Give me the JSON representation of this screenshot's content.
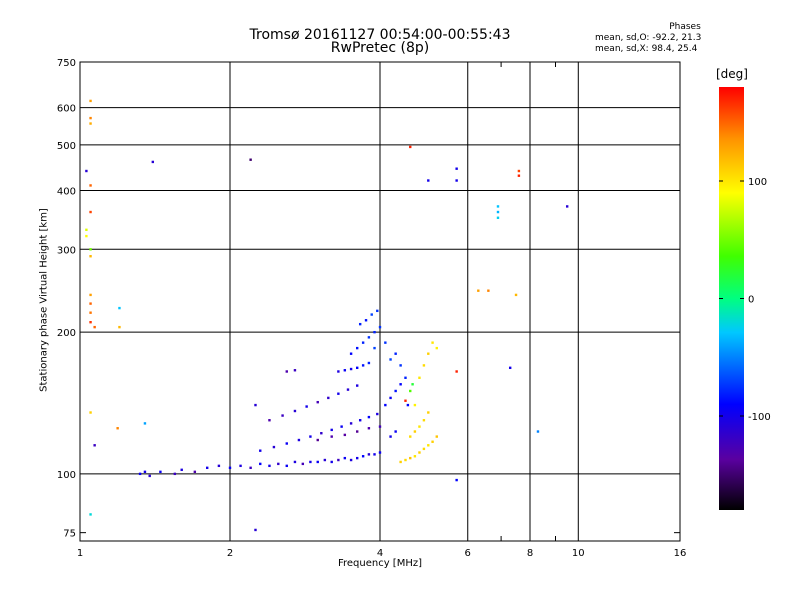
{
  "title_line1": "Tromsø 20161127 00:54:00-00:55:43",
  "title_line2": "RwPretec (8p)",
  "phases": {
    "header": "Phases",
    "line_o": "mean, sd,O: -92.2, 21.3",
    "line_x": "mean, sd,X:  98.4, 25.4"
  },
  "chart_data": {
    "type": "scatter",
    "xlabel": "Frequency [MHz]",
    "ylabel": "Stationary phase Virtual Height [km]",
    "x_scale": "log",
    "y_scale": "log",
    "xlim": [
      1,
      16
    ],
    "ylim": [
      72,
      750
    ],
    "x_ticks": [
      1,
      2,
      4,
      6,
      8,
      10,
      16
    ],
    "x_minor_ticks": [
      7,
      9
    ],
    "y_ticks": [
      75,
      100,
      200,
      300,
      400,
      500,
      600,
      750
    ],
    "grid": true,
    "colorbar": {
      "label": "[deg]",
      "ticks": [
        100,
        0,
        -100
      ],
      "range": [
        -180,
        180
      ],
      "colormap": "rainbow"
    },
    "points": [
      {
        "x": 1.32,
        "y": 100,
        "c": -95
      },
      {
        "x": 1.35,
        "y": 101,
        "c": -100
      },
      {
        "x": 1.38,
        "y": 99,
        "c": -110
      },
      {
        "x": 1.45,
        "y": 101,
        "c": -95
      },
      {
        "x": 1.55,
        "y": 100,
        "c": -120
      },
      {
        "x": 1.6,
        "y": 102,
        "c": -105
      },
      {
        "x": 1.7,
        "y": 101,
        "c": -130
      },
      {
        "x": 1.8,
        "y": 103,
        "c": -100
      },
      {
        "x": 1.9,
        "y": 104,
        "c": -110
      },
      {
        "x": 2.0,
        "y": 103,
        "c": -95
      },
      {
        "x": 2.1,
        "y": 104,
        "c": -105
      },
      {
        "x": 2.2,
        "y": 103,
        "c": -120
      },
      {
        "x": 2.3,
        "y": 105,
        "c": -90
      },
      {
        "x": 2.4,
        "y": 104,
        "c": -100
      },
      {
        "x": 2.5,
        "y": 105,
        "c": -115
      },
      {
        "x": 2.6,
        "y": 104,
        "c": -95
      },
      {
        "x": 2.7,
        "y": 106,
        "c": -105
      },
      {
        "x": 2.8,
        "y": 105,
        "c": -125
      },
      {
        "x": 2.9,
        "y": 106,
        "c": -100
      },
      {
        "x": 3.0,
        "y": 106,
        "c": -95
      },
      {
        "x": 3.1,
        "y": 107,
        "c": -110
      },
      {
        "x": 3.2,
        "y": 106,
        "c": -100
      },
      {
        "x": 3.3,
        "y": 107,
        "c": -120
      },
      {
        "x": 3.4,
        "y": 108,
        "c": -95
      },
      {
        "x": 3.5,
        "y": 107,
        "c": -105
      },
      {
        "x": 3.6,
        "y": 108,
        "c": -100
      },
      {
        "x": 3.7,
        "y": 109,
        "c": -90
      },
      {
        "x": 3.8,
        "y": 110,
        "c": -110
      },
      {
        "x": 3.9,
        "y": 110,
        "c": -100
      },
      {
        "x": 4.0,
        "y": 111,
        "c": -95
      },
      {
        "x": 2.3,
        "y": 112,
        "c": -100
      },
      {
        "x": 2.45,
        "y": 114,
        "c": -110
      },
      {
        "x": 2.6,
        "y": 116,
        "c": -95
      },
      {
        "x": 2.75,
        "y": 118,
        "c": -105
      },
      {
        "x": 2.9,
        "y": 120,
        "c": -100
      },
      {
        "x": 3.05,
        "y": 122,
        "c": -115
      },
      {
        "x": 3.2,
        "y": 124,
        "c": -100
      },
      {
        "x": 3.35,
        "y": 126,
        "c": -95
      },
      {
        "x": 3.5,
        "y": 128,
        "c": -110
      },
      {
        "x": 3.65,
        "y": 130,
        "c": -100
      },
      {
        "x": 3.8,
        "y": 132,
        "c": -90
      },
      {
        "x": 3.95,
        "y": 134,
        "c": -105
      },
      {
        "x": 2.4,
        "y": 130,
        "c": -130
      },
      {
        "x": 2.55,
        "y": 133,
        "c": -120
      },
      {
        "x": 2.7,
        "y": 136,
        "c": -110
      },
      {
        "x": 2.85,
        "y": 139,
        "c": -100
      },
      {
        "x": 3.0,
        "y": 142,
        "c": -125
      },
      {
        "x": 3.15,
        "y": 145,
        "c": -115
      },
      {
        "x": 3.3,
        "y": 148,
        "c": -100
      },
      {
        "x": 3.45,
        "y": 151,
        "c": -110
      },
      {
        "x": 3.6,
        "y": 154,
        "c": -105
      },
      {
        "x": 3.0,
        "y": 118,
        "c": -140
      },
      {
        "x": 3.2,
        "y": 120,
        "c": -130
      },
      {
        "x": 3.4,
        "y": 121,
        "c": -135
      },
      {
        "x": 3.6,
        "y": 123,
        "c": -140
      },
      {
        "x": 3.8,
        "y": 125,
        "c": -130
      },
      {
        "x": 4.0,
        "y": 126,
        "c": -125
      },
      {
        "x": 2.25,
        "y": 140,
        "c": -110
      },
      {
        "x": 2.6,
        "y": 165,
        "c": -130
      },
      {
        "x": 2.7,
        "y": 166,
        "c": -120
      },
      {
        "x": 3.3,
        "y": 165,
        "c": -105
      },
      {
        "x": 3.4,
        "y": 166,
        "c": -95
      },
      {
        "x": 3.5,
        "y": 167,
        "c": -100
      },
      {
        "x": 3.6,
        "y": 168,
        "c": -90
      },
      {
        "x": 3.7,
        "y": 170,
        "c": -85
      },
      {
        "x": 3.8,
        "y": 172,
        "c": -80
      },
      {
        "x": 3.5,
        "y": 180,
        "c": -90
      },
      {
        "x": 3.6,
        "y": 185,
        "c": -85
      },
      {
        "x": 3.7,
        "y": 190,
        "c": -80
      },
      {
        "x": 3.8,
        "y": 195,
        "c": -75
      },
      {
        "x": 3.9,
        "y": 200,
        "c": -80
      },
      {
        "x": 4.0,
        "y": 205,
        "c": -75
      },
      {
        "x": 3.65,
        "y": 208,
        "c": -80
      },
      {
        "x": 3.75,
        "y": 212,
        "c": -85
      },
      {
        "x": 3.85,
        "y": 218,
        "c": -70
      },
      {
        "x": 3.95,
        "y": 222,
        "c": -75
      },
      {
        "x": 3.9,
        "y": 185,
        "c": -70
      },
      {
        "x": 4.1,
        "y": 190,
        "c": -75
      },
      {
        "x": 4.2,
        "y": 175,
        "c": -70
      },
      {
        "x": 4.3,
        "y": 180,
        "c": -80
      },
      {
        "x": 4.4,
        "y": 170,
        "c": -75
      },
      {
        "x": 4.1,
        "y": 140,
        "c": -90
      },
      {
        "x": 4.2,
        "y": 145,
        "c": -95
      },
      {
        "x": 4.3,
        "y": 150,
        "c": -85
      },
      {
        "x": 4.4,
        "y": 155,
        "c": -90
      },
      {
        "x": 4.5,
        "y": 160,
        "c": -80
      },
      {
        "x": 4.2,
        "y": 120,
        "c": -100
      },
      {
        "x": 4.3,
        "y": 123,
        "c": -95
      },
      {
        "x": 4.4,
        "y": 106,
        "c": 110
      },
      {
        "x": 4.5,
        "y": 107,
        "c": 105
      },
      {
        "x": 4.6,
        "y": 108,
        "c": 115
      },
      {
        "x": 4.7,
        "y": 109,
        "c": 100
      },
      {
        "x": 4.8,
        "y": 111,
        "c": 110
      },
      {
        "x": 4.9,
        "y": 113,
        "c": 105
      },
      {
        "x": 5.0,
        "y": 115,
        "c": 100
      },
      {
        "x": 5.1,
        "y": 117,
        "c": 110
      },
      {
        "x": 5.2,
        "y": 120,
        "c": 115
      },
      {
        "x": 4.6,
        "y": 120,
        "c": 105
      },
      {
        "x": 4.7,
        "y": 123,
        "c": 110
      },
      {
        "x": 4.8,
        "y": 126,
        "c": 100
      },
      {
        "x": 4.9,
        "y": 130,
        "c": 105
      },
      {
        "x": 5.0,
        "y": 135,
        "c": 110
      },
      {
        "x": 4.7,
        "y": 140,
        "c": 95
      },
      {
        "x": 4.8,
        "y": 160,
        "c": 100
      },
      {
        "x": 4.9,
        "y": 170,
        "c": 105
      },
      {
        "x": 5.0,
        "y": 180,
        "c": 110
      },
      {
        "x": 5.1,
        "y": 190,
        "c": 100
      },
      {
        "x": 5.2,
        "y": 185,
        "c": 95
      },
      {
        "x": 4.6,
        "y": 150,
        "c": 40
      },
      {
        "x": 4.65,
        "y": 155,
        "c": 20
      },
      {
        "x": 1.05,
        "y": 620,
        "c": 130
      },
      {
        "x": 1.05,
        "y": 570,
        "c": 140
      },
      {
        "x": 1.05,
        "y": 555,
        "c": 125
      },
      {
        "x": 1.05,
        "y": 410,
        "c": 150
      },
      {
        "x": 1.05,
        "y": 360,
        "c": 160
      },
      {
        "x": 1.03,
        "y": 330,
        "c": 80
      },
      {
        "x": 1.03,
        "y": 320,
        "c": 90
      },
      {
        "x": 1.05,
        "y": 300,
        "c": 50
      },
      {
        "x": 1.05,
        "y": 290,
        "c": 120
      },
      {
        "x": 1.05,
        "y": 240,
        "c": 130
      },
      {
        "x": 1.05,
        "y": 230,
        "c": 150
      },
      {
        "x": 1.05,
        "y": 220,
        "c": 145
      },
      {
        "x": 1.05,
        "y": 210,
        "c": 165
      },
      {
        "x": 1.07,
        "y": 205,
        "c": 150
      },
      {
        "x": 1.2,
        "y": 225,
        "c": -30
      },
      {
        "x": 1.2,
        "y": 205,
        "c": 120
      },
      {
        "x": 1.03,
        "y": 440,
        "c": -110
      },
      {
        "x": 1.05,
        "y": 135,
        "c": 110
      },
      {
        "x": 1.07,
        "y": 115,
        "c": -120
      },
      {
        "x": 1.19,
        "y": 125,
        "c": 140
      },
      {
        "x": 1.35,
        "y": 128,
        "c": -40
      },
      {
        "x": 1.05,
        "y": 82,
        "c": -20
      },
      {
        "x": 1.4,
        "y": 460,
        "c": -110
      },
      {
        "x": 2.2,
        "y": 465,
        "c": -150
      },
      {
        "x": 2.25,
        "y": 76,
        "c": -110
      },
      {
        "x": 4.6,
        "y": 495,
        "c": 170
      },
      {
        "x": 5.0,
        "y": 420,
        "c": -100
      },
      {
        "x": 5.7,
        "y": 445,
        "c": -100
      },
      {
        "x": 5.7,
        "y": 420,
        "c": -100
      },
      {
        "x": 5.7,
        "y": 97,
        "c": -90
      },
      {
        "x": 5.7,
        "y": 165,
        "c": 170
      },
      {
        "x": 6.3,
        "y": 245,
        "c": 130
      },
      {
        "x": 6.6,
        "y": 245,
        "c": 140
      },
      {
        "x": 6.9,
        "y": 370,
        "c": -30
      },
      {
        "x": 6.9,
        "y": 360,
        "c": -35
      },
      {
        "x": 6.9,
        "y": 350,
        "c": -25
      },
      {
        "x": 7.6,
        "y": 440,
        "c": 160
      },
      {
        "x": 7.6,
        "y": 430,
        "c": 170
      },
      {
        "x": 7.5,
        "y": 240,
        "c": 120
      },
      {
        "x": 7.3,
        "y": 168,
        "c": -100
      },
      {
        "x": 8.3,
        "y": 123,
        "c": -50
      },
      {
        "x": 9.5,
        "y": 370,
        "c": -110
      },
      {
        "x": 4.5,
        "y": 143,
        "c": 170
      },
      {
        "x": 4.55,
        "y": 140,
        "c": -90
      }
    ]
  }
}
